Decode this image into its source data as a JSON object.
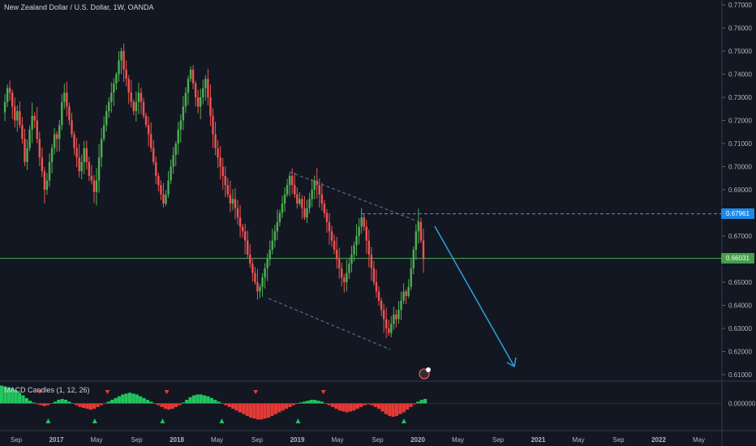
{
  "chart_data": [
    {
      "type": "candlestick",
      "title": "New Zealand Dollar / U.S. Dollar, 1W, OANDA",
      "y_ticks": [
        "0.77000",
        "0.76000",
        "0.75000",
        "0.74000",
        "0.73000",
        "0.72000",
        "0.71000",
        "0.70000",
        "0.69000",
        "0.68000",
        "0.67000",
        "0.66000",
        "0.65000",
        "0.64000",
        "0.63000",
        "0.62000",
        "0.61000"
      ],
      "x_ticks": [
        "Sep",
        "2017",
        "May",
        "Sep",
        "2018",
        "May",
        "Sep",
        "2019",
        "May",
        "Sep",
        "2020",
        "May",
        "Sep",
        "2021",
        "May",
        "Sep",
        "2022",
        "May"
      ],
      "ylim": [
        0.6075,
        0.7735
      ],
      "horizontal_lines": [
        {
          "label": "0.67961",
          "value": 0.67961,
          "color": "#29a3e0",
          "style": "dashed"
        },
        {
          "label": "0.66031",
          "value": 0.66031,
          "color": "#4caf50",
          "style": "solid"
        }
      ],
      "colors": {
        "up": "#4caf50",
        "down": "#ef5350"
      },
      "close_path": [
        0.7235,
        0.728,
        0.734,
        0.732,
        0.726,
        0.72,
        0.724,
        0.718,
        0.712,
        0.702,
        0.708,
        0.716,
        0.722,
        0.72,
        0.712,
        0.704,
        0.698,
        0.69,
        0.694,
        0.702,
        0.708,
        0.714,
        0.712,
        0.718,
        0.728,
        0.732,
        0.726,
        0.72,
        0.714,
        0.708,
        0.704,
        0.698,
        0.702,
        0.708,
        0.702,
        0.696,
        0.694,
        0.689,
        0.694,
        0.704,
        0.712,
        0.718,
        0.724,
        0.728,
        0.732,
        0.736,
        0.74,
        0.746,
        0.75,
        0.742,
        0.738,
        0.732,
        0.728,
        0.724,
        0.728,
        0.732,
        0.728,
        0.722,
        0.718,
        0.714,
        0.708,
        0.702,
        0.696,
        0.692,
        0.688,
        0.684,
        0.688,
        0.694,
        0.7,
        0.705,
        0.71,
        0.716,
        0.72,
        0.726,
        0.732,
        0.738,
        0.742,
        0.736,
        0.73,
        0.726,
        0.73,
        0.734,
        0.738,
        0.73,
        0.722,
        0.714,
        0.708,
        0.704,
        0.7,
        0.696,
        0.692,
        0.688,
        0.684,
        0.686,
        0.682,
        0.678,
        0.674,
        0.672,
        0.668,
        0.662,
        0.658,
        0.654,
        0.65,
        0.646,
        0.648,
        0.652,
        0.656,
        0.66,
        0.664,
        0.668,
        0.672,
        0.676,
        0.68,
        0.684,
        0.688,
        0.692,
        0.696,
        0.692,
        0.688,
        0.684,
        0.686,
        0.682,
        0.678,
        0.682,
        0.686,
        0.69,
        0.694,
        0.692,
        0.688,
        0.684,
        0.68,
        0.676,
        0.672,
        0.668,
        0.664,
        0.66,
        0.656,
        0.652,
        0.65,
        0.654,
        0.658,
        0.662,
        0.666,
        0.67,
        0.674,
        0.678,
        0.674,
        0.668,
        0.662,
        0.656,
        0.65,
        0.646,
        0.642,
        0.638,
        0.634,
        0.63,
        0.628,
        0.632,
        0.636,
        0.634,
        0.638,
        0.642,
        0.646,
        0.644,
        0.648,
        0.656,
        0.664,
        0.672,
        0.676,
        0.668,
        0.66
      ],
      "annotations": [
        {
          "kind": "channel",
          "color": "#5b7b9a"
        },
        {
          "kind": "arrow",
          "color": "#29a3e0"
        }
      ]
    },
    {
      "type": "bar",
      "title": "MACD Candles (1, 12, 26)",
      "y_ticks": [
        "0.000000"
      ],
      "colors": {
        "positive": "#22c55e",
        "negative": "#e53935"
      },
      "values": [
        1.0,
        0.95,
        0.9,
        0.85,
        0.75,
        0.6,
        0.45,
        0.3,
        0.15,
        0.05,
        -0.05,
        -0.1,
        -0.15,
        -0.1,
        0.0,
        0.1,
        0.2,
        0.25,
        0.2,
        0.1,
        0.0,
        -0.1,
        -0.2,
        -0.25,
        -0.3,
        -0.35,
        -0.3,
        -0.2,
        -0.1,
        0.0,
        0.1,
        0.2,
        0.3,
        0.4,
        0.5,
        0.55,
        0.6,
        0.55,
        0.5,
        0.4,
        0.3,
        0.2,
        0.1,
        0.0,
        -0.1,
        -0.2,
        -0.3,
        -0.35,
        -0.3,
        -0.2,
        -0.1,
        0.05,
        0.2,
        0.35,
        0.45,
        0.5,
        0.5,
        0.45,
        0.4,
        0.3,
        0.2,
        0.1,
        0.0,
        -0.1,
        -0.2,
        -0.3,
        -0.4,
        -0.5,
        -0.6,
        -0.7,
        -0.8,
        -0.85,
        -0.9,
        -0.9,
        -0.85,
        -0.8,
        -0.7,
        -0.6,
        -0.5,
        -0.4,
        -0.3,
        -0.2,
        -0.1,
        0.0,
        0.05,
        0.1,
        0.15,
        0.2,
        0.2,
        0.15,
        0.1,
        0.0,
        -0.1,
        -0.2,
        -0.3,
        -0.4,
        -0.45,
        -0.5,
        -0.45,
        -0.4,
        -0.3,
        -0.2,
        -0.1,
        -0.05,
        -0.1,
        -0.2,
        -0.3,
        -0.45,
        -0.6,
        -0.7,
        -0.75,
        -0.7,
        -0.6,
        -0.5,
        -0.35,
        -0.2,
        -0.05,
        0.1,
        0.2,
        0.25
      ],
      "signals": [
        {
          "type": "sell",
          "at": 0.09
        },
        {
          "type": "buy",
          "at": 0.11
        },
        {
          "type": "buy",
          "at": 0.22
        },
        {
          "type": "sell",
          "at": 0.25
        },
        {
          "type": "buy",
          "at": 0.38
        },
        {
          "type": "sell",
          "at": 0.39
        },
        {
          "type": "buy",
          "at": 0.52
        },
        {
          "type": "sell",
          "at": 0.6
        },
        {
          "type": "buy",
          "at": 0.7
        },
        {
          "type": "sell",
          "at": 0.76
        },
        {
          "type": "buy",
          "at": 0.95
        }
      ]
    }
  ]
}
